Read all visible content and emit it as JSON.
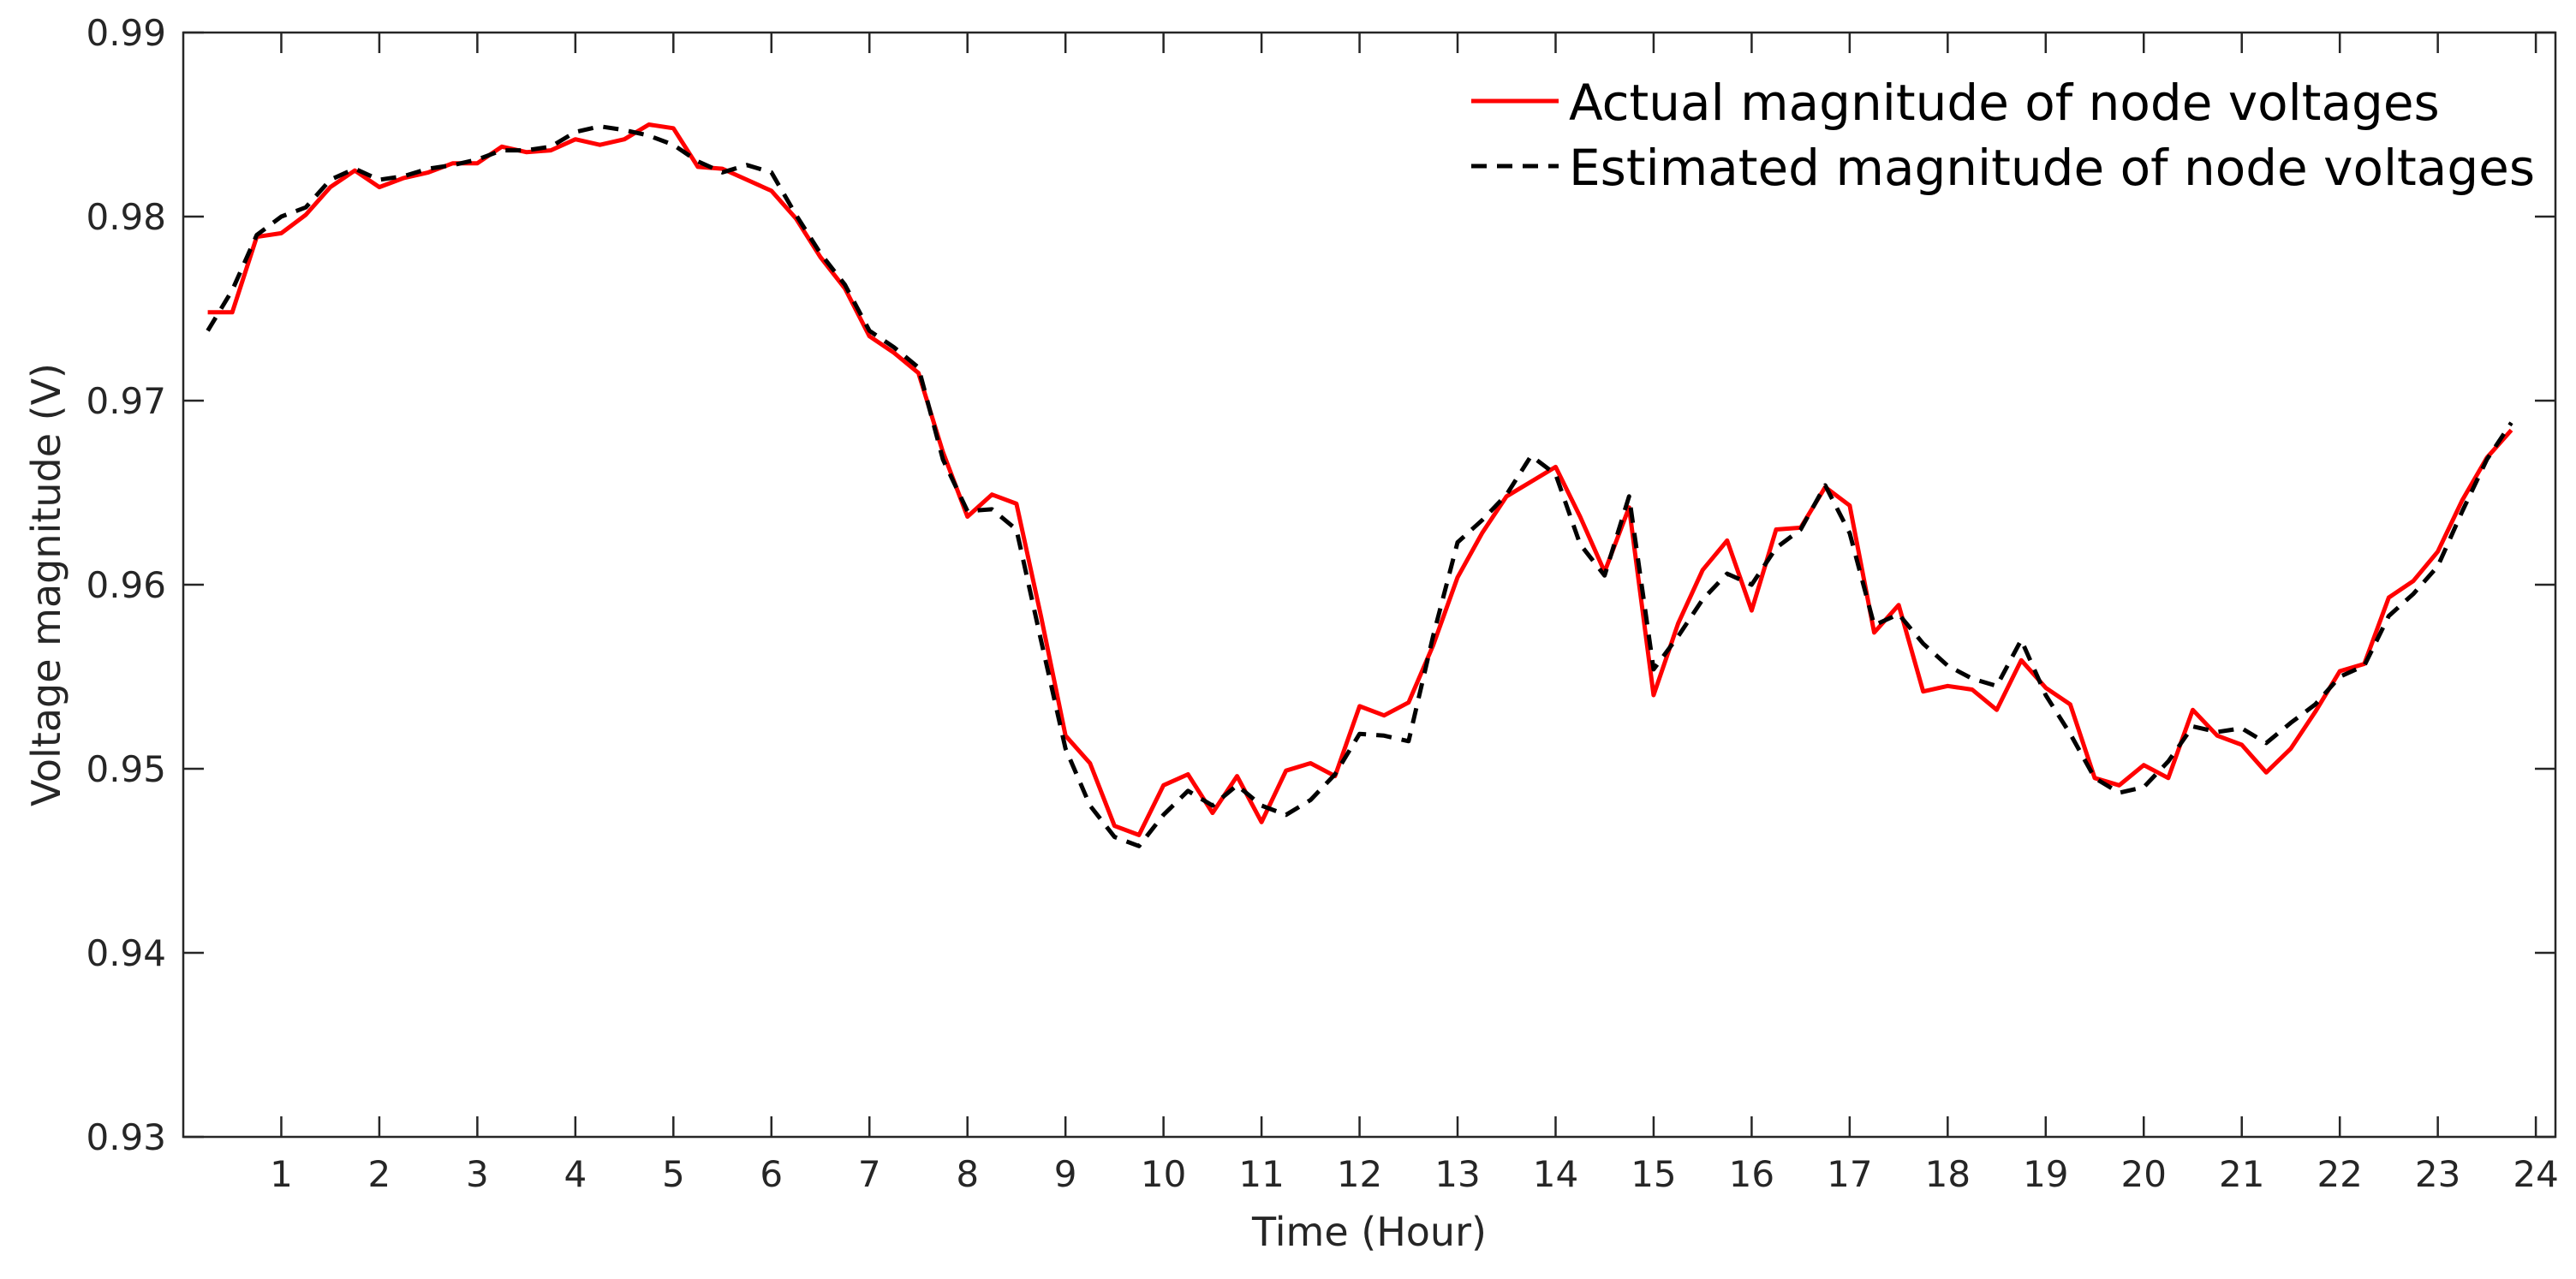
{
  "chart_data": {
    "type": "line",
    "xlabel": "Time (Hour)",
    "ylabel": "Voltage magnitude (V)",
    "xlim": [
      0,
      24.2
    ],
    "ylim": [
      0.93,
      0.99
    ],
    "xticks": [
      1,
      2,
      3,
      4,
      5,
      6,
      7,
      8,
      9,
      10,
      11,
      12,
      13,
      14,
      15,
      16,
      17,
      18,
      19,
      20,
      21,
      22,
      23,
      24
    ],
    "xtick_labels": [
      "1",
      "2",
      "3",
      "4",
      "5",
      "6",
      "7",
      "8",
      "9",
      "10",
      "11",
      "12",
      "13",
      "14",
      "15",
      "16",
      "17",
      "18",
      "19",
      "20",
      "21",
      "22",
      "23",
      "24"
    ],
    "yticks": [
      0.93,
      0.94,
      0.95,
      0.96,
      0.97,
      0.98,
      0.99
    ],
    "ytick_labels": [
      "0.93",
      "0.94",
      "0.95",
      "0.96",
      "0.97",
      "0.98",
      "0.99"
    ],
    "grid": false,
    "legend_position": "top-right",
    "series": [
      {
        "name": "Actual magnitude of node voltages",
        "color": "#ff0000",
        "style": "solid",
        "x": [
          0.25,
          0.5,
          0.75,
          1.0,
          1.25,
          1.5,
          1.75,
          2.0,
          2.25,
          2.5,
          2.75,
          3.0,
          3.25,
          3.5,
          3.75,
          4.0,
          4.25,
          4.5,
          4.75,
          5.0,
          5.25,
          5.5,
          5.75,
          6.0,
          6.25,
          6.5,
          6.75,
          7.0,
          7.25,
          7.5,
          7.75,
          8.0,
          8.25,
          8.5,
          8.75,
          9.0,
          9.25,
          9.5,
          9.75,
          10.0,
          10.25,
          10.5,
          10.75,
          11.0,
          11.25,
          11.5,
          11.75,
          12.0,
          12.25,
          12.5,
          12.75,
          13.0,
          13.25,
          13.5,
          13.75,
          14.0,
          14.25,
          14.5,
          14.75,
          15.0,
          15.25,
          15.5,
          15.75,
          16.0,
          16.25,
          16.5,
          16.75,
          17.0,
          17.25,
          17.5,
          17.75,
          18.0,
          18.25,
          18.5,
          18.75,
          19.0,
          19.25,
          19.5,
          19.75,
          20.0,
          20.25,
          20.5,
          20.75,
          21.0,
          21.25,
          21.5,
          21.75,
          22.0,
          22.25,
          22.5,
          22.75,
          23.0,
          23.25,
          23.5,
          23.75
        ],
        "y": [
          0.9748,
          0.9748,
          0.9789,
          0.9791,
          0.9801,
          0.9816,
          0.9825,
          0.9816,
          0.9821,
          0.9824,
          0.9829,
          0.9829,
          0.9838,
          0.9835,
          0.9836,
          0.9842,
          0.9839,
          0.9842,
          0.985,
          0.9848,
          0.9827,
          0.9826,
          0.982,
          0.9814,
          0.9799,
          0.9778,
          0.9761,
          0.9735,
          0.9726,
          0.9715,
          0.9672,
          0.9637,
          0.9649,
          0.9644,
          0.9583,
          0.9518,
          0.9503,
          0.9469,
          0.9464,
          0.9491,
          0.9497,
          0.9476,
          0.9496,
          0.9471,
          0.9499,
          0.9503,
          0.9496,
          0.9534,
          0.9529,
          0.9536,
          0.9567,
          0.9604,
          0.9628,
          0.9648,
          0.9656,
          0.9664,
          0.9637,
          0.9607,
          0.9642,
          0.954,
          0.9579,
          0.9608,
          0.9624,
          0.9586,
          0.963,
          0.9631,
          0.9653,
          0.9643,
          0.9574,
          0.9589,
          0.9542,
          0.9545,
          0.9543,
          0.9532,
          0.9559,
          0.9544,
          0.9535,
          0.9495,
          0.9491,
          0.9502,
          0.9495,
          0.9532,
          0.9518,
          0.9513,
          0.9498,
          0.9511,
          0.9531,
          0.9553,
          0.9557,
          0.9593,
          0.9602,
          0.9618,
          0.9646,
          0.9669,
          0.9684
        ]
      },
      {
        "name": "Estimated magnitude of node voltages",
        "color": "#000000",
        "style": "dashed",
        "x": [
          0.25,
          0.5,
          0.75,
          1.0,
          1.25,
          1.5,
          1.75,
          2.0,
          2.25,
          2.5,
          2.75,
          3.0,
          3.25,
          3.5,
          3.75,
          4.0,
          4.25,
          4.5,
          4.75,
          5.0,
          5.25,
          5.5,
          5.75,
          6.0,
          6.25,
          6.5,
          6.75,
          7.0,
          7.25,
          7.5,
          7.75,
          8.0,
          8.25,
          8.5,
          8.75,
          9.0,
          9.25,
          9.5,
          9.75,
          10.0,
          10.25,
          10.5,
          10.75,
          11.0,
          11.25,
          11.5,
          11.75,
          12.0,
          12.25,
          12.5,
          12.75,
          13.0,
          13.25,
          13.5,
          13.75,
          14.0,
          14.25,
          14.5,
          14.75,
          15.0,
          15.25,
          15.5,
          15.75,
          16.0,
          16.25,
          16.5,
          16.75,
          17.0,
          17.25,
          17.5,
          17.75,
          18.0,
          18.25,
          18.5,
          18.75,
          19.0,
          19.25,
          19.5,
          19.75,
          20.0,
          20.25,
          20.5,
          20.75,
          21.0,
          21.25,
          21.5,
          21.75,
          22.0,
          22.25,
          22.5,
          22.75,
          23.0,
          23.25,
          23.5,
          23.75
        ],
        "y": [
          0.9738,
          0.976,
          0.979,
          0.98,
          0.9805,
          0.982,
          0.9826,
          0.982,
          0.9822,
          0.9826,
          0.9828,
          0.9831,
          0.9836,
          0.9836,
          0.9838,
          0.9846,
          0.9849,
          0.9847,
          0.9844,
          0.9839,
          0.983,
          0.9824,
          0.9828,
          0.9824,
          0.9801,
          0.978,
          0.9763,
          0.9738,
          0.9729,
          0.9718,
          0.9668,
          0.964,
          0.9641,
          0.963,
          0.957,
          0.9511,
          0.948,
          0.9463,
          0.9458,
          0.9475,
          0.9488,
          0.948,
          0.9491,
          0.948,
          0.9475,
          0.9483,
          0.9497,
          0.9519,
          0.9518,
          0.9515,
          0.9572,
          0.9623,
          0.9635,
          0.9649,
          0.967,
          0.966,
          0.9622,
          0.9605,
          0.9648,
          0.9554,
          0.9572,
          0.9592,
          0.9606,
          0.96,
          0.962,
          0.963,
          0.9654,
          0.9628,
          0.9578,
          0.9584,
          0.9568,
          0.9556,
          0.9549,
          0.9545,
          0.957,
          0.954,
          0.9519,
          0.9495,
          0.9487,
          0.949,
          0.9504,
          0.9523,
          0.952,
          0.9522,
          0.9514,
          0.9525,
          0.9535,
          0.955,
          0.9556,
          0.9583,
          0.9595,
          0.961,
          0.964,
          0.9668,
          0.9688
        ]
      }
    ]
  }
}
